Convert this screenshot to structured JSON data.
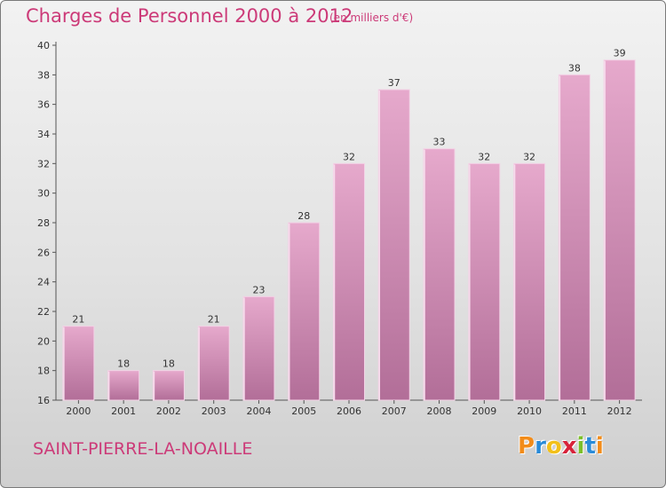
{
  "header": {
    "title": "Charges de Personnel 2000 à 2012",
    "subtitle": "(en milliers d'€)"
  },
  "footer": {
    "commune": "SAINT-PIERRE-LA-NOAILLE",
    "logo_letters": [
      "P",
      "r",
      "o",
      "x",
      "i",
      "t",
      "i"
    ],
    "logo_colors": [
      "#f28c1a",
      "#2a8bd8",
      "#f2c01a",
      "#d8223a",
      "#7cbf2a",
      "#2a8bd8",
      "#f28c1a"
    ]
  },
  "colors": {
    "bar_light": "#e6a9cc",
    "bar_dark": "#b26e98",
    "bar_edge": "#f3d2e6",
    "text_accent": "#cc3a78"
  },
  "chart_data": {
    "type": "bar",
    "categories": [
      "2000",
      "2001",
      "2002",
      "2003",
      "2004",
      "2005",
      "2006",
      "2007",
      "2008",
      "2009",
      "2010",
      "2011",
      "2012"
    ],
    "values": [
      21,
      18,
      18,
      21,
      23,
      28,
      32,
      37,
      33,
      32,
      32,
      38,
      39
    ],
    "ylim": [
      16,
      40
    ],
    "yticks": [
      16,
      18,
      20,
      22,
      24,
      26,
      28,
      30,
      32,
      34,
      36,
      38,
      40
    ],
    "grid": false,
    "legend": "none"
  }
}
